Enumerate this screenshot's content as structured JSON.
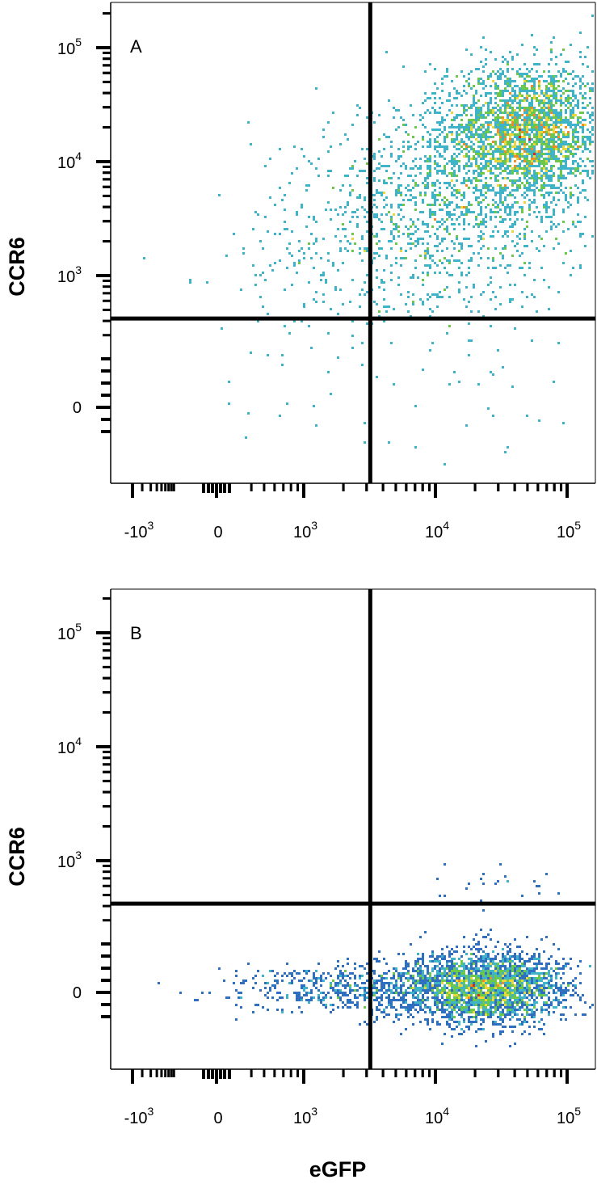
{
  "chart_data": [
    {
      "type": "scatter",
      "panel_label": "A",
      "xlabel": "eGFP",
      "ylabel": "CCR6",
      "x_scale": "biexponential",
      "y_scale": "biexponential",
      "x_ticks": [
        "-10^3",
        "0",
        "10^3",
        "10^4",
        "10^5"
      ],
      "y_ticks": [
        "0",
        "10^3",
        "10^4",
        "10^5"
      ],
      "xlim": [
        -2000,
        250000
      ],
      "ylim": [
        -500,
        250000
      ],
      "gate": {
        "x": 3200,
        "y": 420
      },
      "quadrant_percent_shown": false,
      "populations": [
        {
          "name": "",
          "center": [
            50000,
            18000
          ],
          "spread_log10": [
            0.3,
            0.3
          ],
          "count": 2600,
          "note": "dense EGFP+ CCR6+ population"
        },
        {
          "name": "",
          "center": [
            12000,
            4000
          ],
          "spread_log10": [
            0.5,
            0.45
          ],
          "count": 1300,
          "note": "diffuse tail toward gate"
        },
        {
          "name": "",
          "center": [
            1500,
            1200
          ],
          "spread_log10": [
            0.45,
            0.3
          ],
          "count": 140,
          "note": "sparse low events"
        }
      ],
      "grid": false,
      "density_colormap": [
        "#2a3b9b",
        "#2f6fc0",
        "#3fb4c8",
        "#6cc84a",
        "#e9d63a",
        "#f28a25",
        "#d62b1e"
      ]
    },
    {
      "type": "scatter",
      "panel_label": "B",
      "xlabel": "eGFP",
      "ylabel": "CCR6",
      "x_scale": "biexponential",
      "y_scale": "biexponential",
      "x_ticks": [
        "-10^3",
        "0",
        "10^3",
        "10^4",
        "10^5"
      ],
      "y_ticks": [
        "0",
        "10^3",
        "10^4",
        "10^5"
      ],
      "xlim": [
        -2000,
        250000
      ],
      "ylim": [
        -500,
        250000
      ],
      "gate": {
        "x": 3200,
        "y": 420
      },
      "quadrant_percent_shown": false,
      "populations": [
        {
          "name": "",
          "center": [
            25000,
            40
          ],
          "spread_log10": [
            0.3,
            0.12
          ],
          "count": 2600,
          "note": "dense EGFP+ CCR6- population"
        },
        {
          "name": "",
          "center": [
            3000,
            40
          ],
          "spread_log10": [
            0.5,
            0.15
          ],
          "count": 700,
          "note": "diffuse low tail"
        },
        {
          "name": "",
          "center": [
            30000,
            600
          ],
          "spread_log10": [
            0.25,
            0.12
          ],
          "count": 25,
          "note": "few events above gate"
        }
      ],
      "grid": false,
      "density_colormap": [
        "#2a3b9b",
        "#2f6fc0",
        "#3fb4c8",
        "#6cc84a",
        "#e9d63a",
        "#f28a25",
        "#d62b1e"
      ]
    }
  ],
  "figure": {
    "xlabel": "eGFP",
    "ylabel": "CCR6"
  }
}
